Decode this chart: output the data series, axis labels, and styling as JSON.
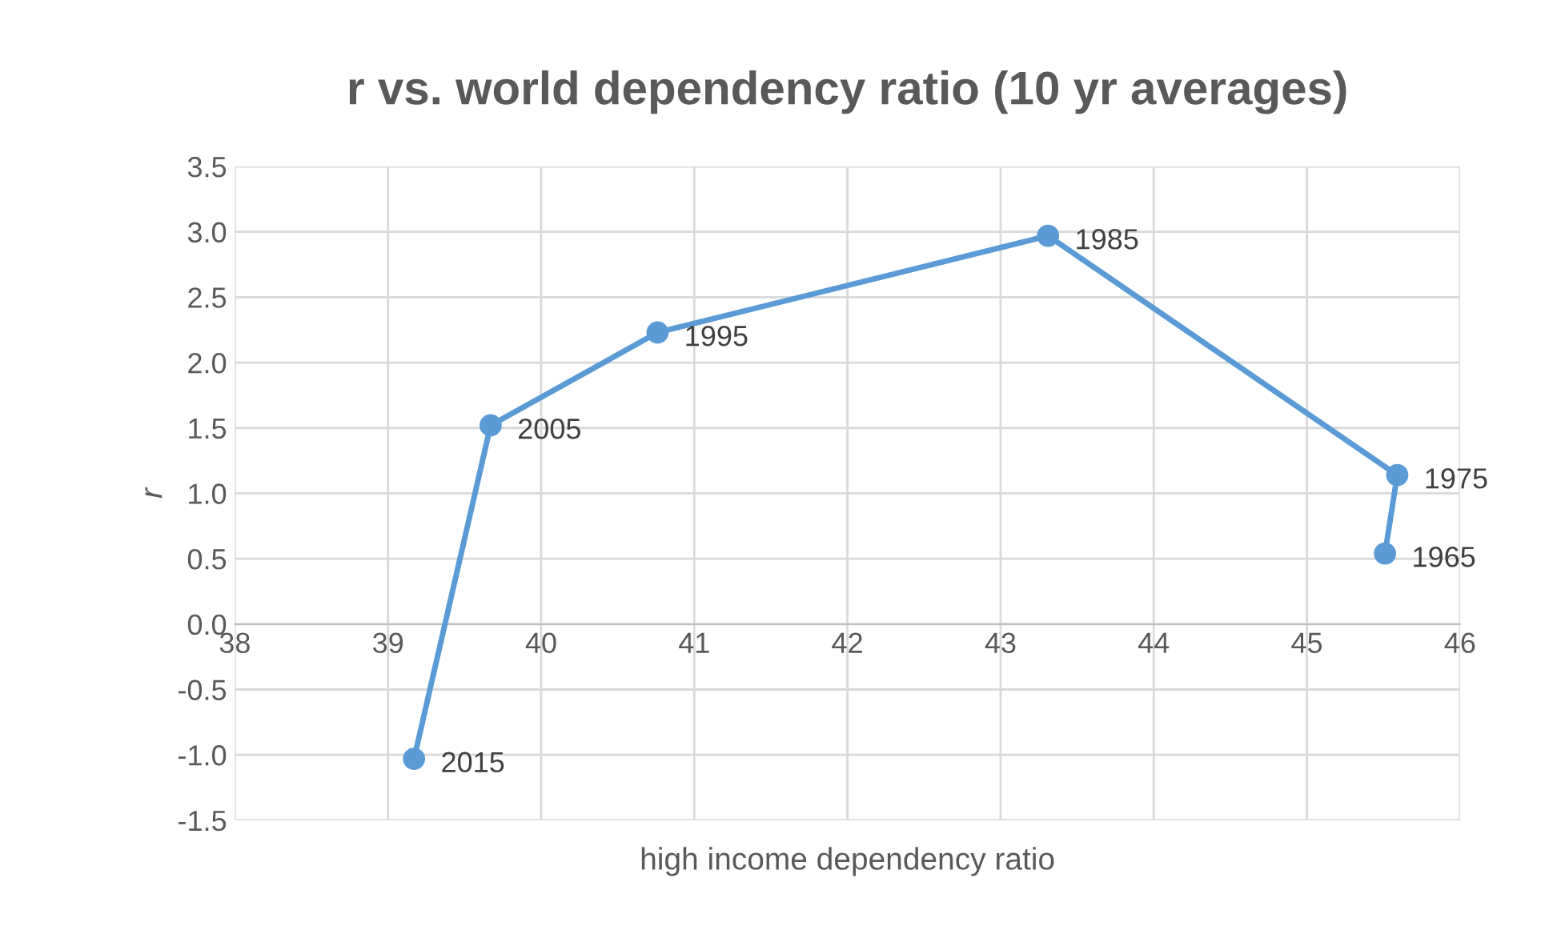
{
  "chart_data": {
    "type": "line",
    "title": "r vs. world dependency ratio (10 yr averages)",
    "xlabel": "high income dependency ratio",
    "ylabel": "r",
    "x": [
      45.51,
      45.59,
      43.31,
      40.76,
      39.67,
      39.17
    ],
    "series": [
      {
        "color": "#5b9bd5",
        "values": [
          0.54,
          1.14,
          2.97,
          2.23,
          1.52,
          -1.03
        ]
      }
    ],
    "annotations": [
      {
        "text": "1965",
        "x": 45.51,
        "y": 0.54
      },
      {
        "text": "1975",
        "x": 45.59,
        "y": 1.14
      },
      {
        "text": "1985",
        "x": 43.31,
        "y": 2.97
      },
      {
        "text": "1995",
        "x": 40.76,
        "y": 2.23
      },
      {
        "text": "2005",
        "x": 39.67,
        "y": 1.52
      },
      {
        "text": "2015",
        "x": 39.17,
        "y": -1.03
      }
    ],
    "xlim": [
      38,
      46
    ],
    "xticks": [
      38,
      39,
      40,
      41,
      42,
      43,
      44,
      45,
      46
    ],
    "ylim": [
      -1.5,
      3.5
    ],
    "yticks": [
      {
        "value": -1.5,
        "label": "-1.5"
      },
      {
        "value": -1.0,
        "label": "-1.0"
      },
      {
        "value": -0.5,
        "label": "-0.5"
      },
      {
        "value": 0,
        "label": "0.0"
      },
      {
        "value": 0.5,
        "label": "0.5"
      },
      {
        "value": 1.0,
        "label": "1.0"
      },
      {
        "value": 1.5,
        "label": "1.5"
      },
      {
        "value": 2.0,
        "label": "2.0"
      },
      {
        "value": 2.5,
        "label": "2.5"
      },
      {
        "value": 3.0,
        "label": "3.0"
      },
      {
        "value": 3.5,
        "label": "3.5"
      }
    ],
    "grid": true,
    "marker": "circle",
    "line_style": "solid"
  }
}
